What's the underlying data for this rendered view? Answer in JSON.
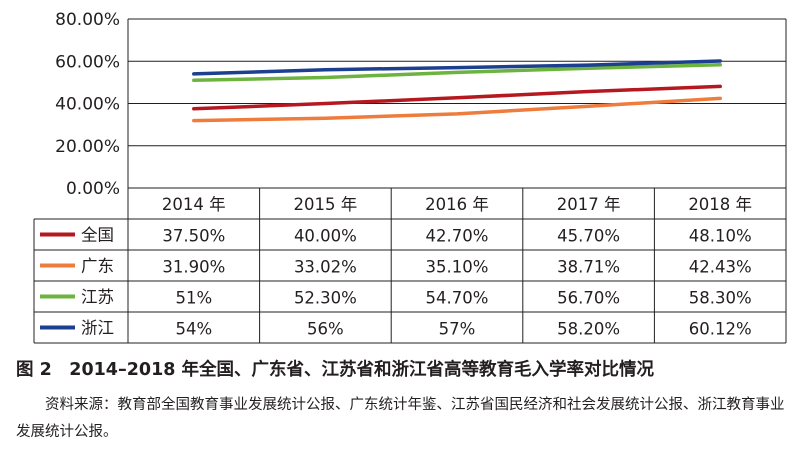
{
  "chart_data": {
    "type": "line",
    "title": "",
    "xlabel": "",
    "ylabel": "",
    "categories": [
      "2014 年",
      "2015 年",
      "2016 年",
      "2017 年",
      "2018 年"
    ],
    "ylim": [
      0,
      80
    ],
    "yticks": [
      "0.00%",
      "20.00%",
      "40.00%",
      "60.00%",
      "80.00%"
    ],
    "grid": true,
    "legend": "data-table-below",
    "series": [
      {
        "name": "全国",
        "color": "#b5191f",
        "values": [
          37.5,
          40.0,
          42.7,
          45.7,
          48.1
        ],
        "labels": [
          "37.50%",
          "40.00%",
          "42.70%",
          "45.70%",
          "48.10%"
        ]
      },
      {
        "name": "广东",
        "color": "#ee7c3c",
        "values": [
          31.9,
          33.02,
          35.1,
          38.71,
          42.43
        ],
        "labels": [
          "31.90%",
          "33.02%",
          "35.10%",
          "38.71%",
          "42.43%"
        ]
      },
      {
        "name": "江苏",
        "color": "#6db33f",
        "values": [
          51,
          52.3,
          54.7,
          56.7,
          58.3
        ],
        "labels": [
          "51%",
          "52.30%",
          "54.70%",
          "56.70%",
          "58.30%"
        ]
      },
      {
        "name": "浙江",
        "color": "#1d3f8f",
        "values": [
          54,
          56,
          57,
          58.2,
          60.12
        ],
        "labels": [
          "54%",
          "56%",
          "57%",
          "58.20%",
          "60.12%"
        ]
      }
    ]
  },
  "caption": "图 2　2014–2018 年全国、广东省、江苏省和浙江省高等教育毛入学率对比情况",
  "source": "资料来源：教育部全国教育事业发展统计公报、广东统计年鉴、江苏省国民经济和社会发展统计公报、浙江教育事业发展统计公报。"
}
